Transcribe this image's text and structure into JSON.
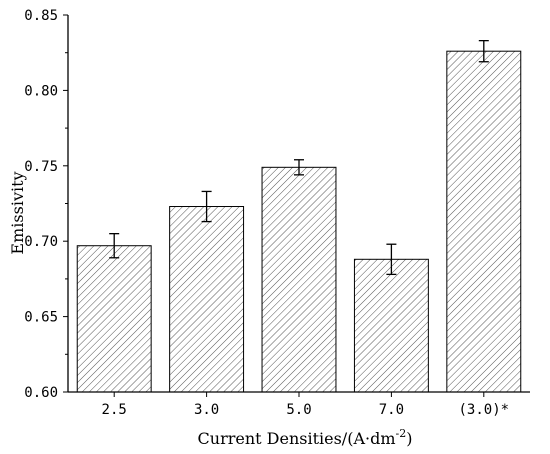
{
  "chart_data": {
    "type": "bar",
    "categories": [
      "2.5",
      "3.0",
      "5.0",
      "7.0",
      "(3.0)*"
    ],
    "values": [
      0.697,
      0.723,
      0.749,
      0.688,
      0.826
    ],
    "errors": [
      0.008,
      0.01,
      0.005,
      0.01,
      0.007
    ],
    "xlabel": "Current Densities/(A·dm⁻²)",
    "ylabel": "Emissivity",
    "ylim": [
      0.6,
      0.85
    ],
    "yticks": [
      "0.60",
      "0.65",
      "0.70",
      "0.75",
      "0.80",
      "0.85"
    ],
    "bar_fill": "hatched",
    "colors": {
      "bar_stroke": "#000000",
      "hatch": "#555555",
      "axis": "#000000"
    },
    "grid": false,
    "legend": "none"
  }
}
